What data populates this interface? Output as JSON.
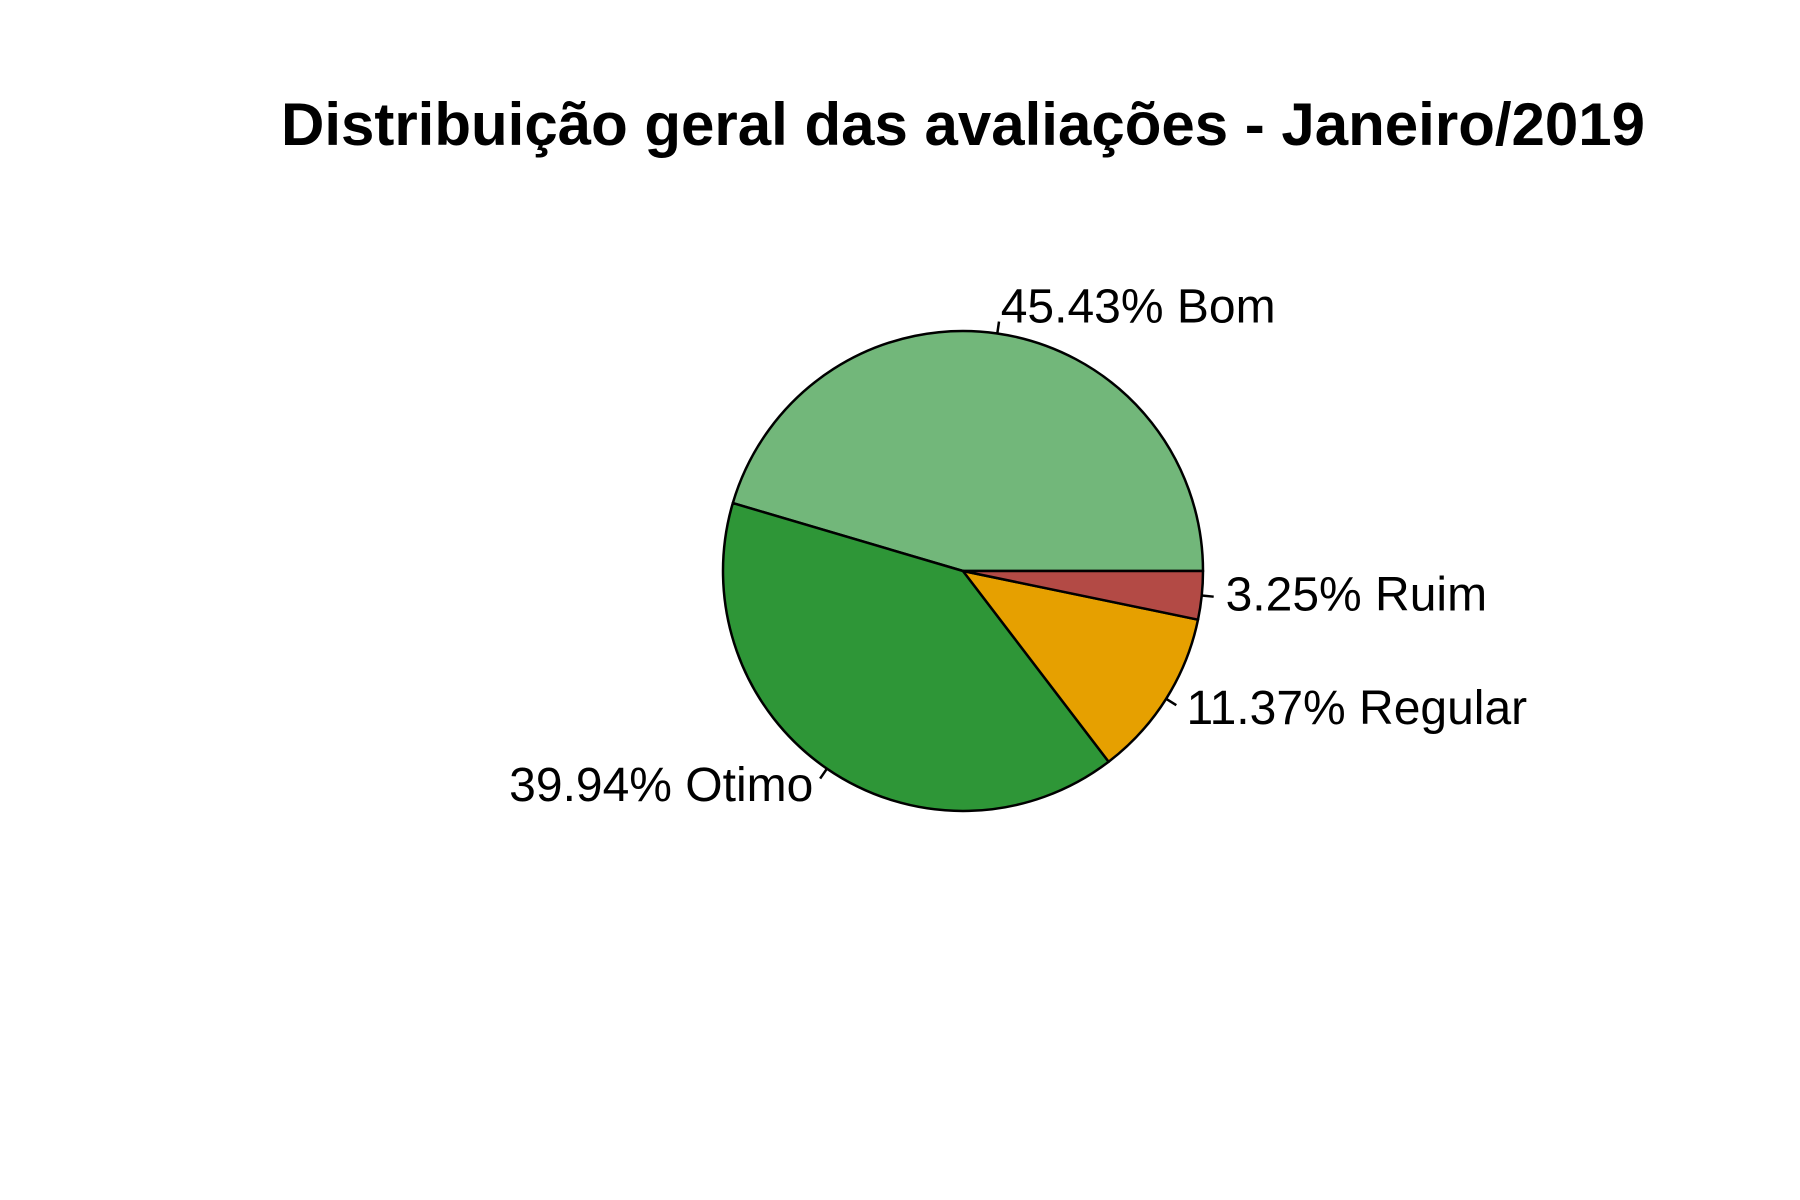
{
  "chart_data": {
    "type": "pie",
    "title": "Distribuição geral das avaliações - Janeiro/2019",
    "start_angle_deg": 0,
    "direction": "counterclockwise",
    "slices": [
      {
        "label": "Bom",
        "value": 45.43,
        "display": "45.43% Bom",
        "color": "#72B77A"
      },
      {
        "label": "Otimo",
        "value": 39.94,
        "display": "39.94% Otimo",
        "color": "#2E9637"
      },
      {
        "label": "Regular",
        "value": 11.37,
        "display": "11.37% Regular",
        "color": "#E6A000"
      },
      {
        "label": "Ruim",
        "value": 3.25,
        "display": "3.25% Ruim",
        "color": "#B34A45"
      }
    ]
  }
}
